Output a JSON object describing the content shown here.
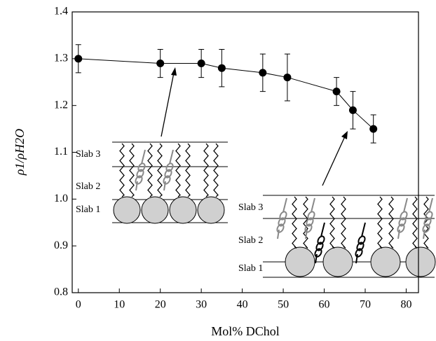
{
  "chart_data": {
    "type": "scatter",
    "x_label": "Mol% DChol",
    "y_label": "ρ1/ρH2O",
    "x": [
      0,
      20,
      30,
      35,
      45,
      51,
      63,
      67,
      72
    ],
    "values": [
      1.3,
      1.29,
      1.29,
      1.28,
      1.27,
      1.26,
      1.23,
      1.19,
      1.15
    ],
    "errors": [
      0.03,
      0.03,
      0.03,
      0.04,
      0.04,
      0.05,
      0.03,
      0.04,
      0.03
    ],
    "color": "#000000",
    "xlim": [
      -1.5,
      83
    ],
    "xticks": [
      0,
      10,
      20,
      30,
      40,
      50,
      60,
      70,
      80
    ],
    "ylim": [
      0.8,
      1.4
    ],
    "yticks": [
      {
        "value": 0.8,
        "label": "0.8"
      },
      {
        "value": 0.9,
        "label": "0.9"
      },
      {
        "value": 1.0,
        "label": "1.0"
      },
      {
        "value": 1.1,
        "label": "1.1"
      },
      {
        "value": 1.2,
        "label": "1.2"
      },
      {
        "value": 1.3,
        "label": "1.3"
      },
      {
        "value": 1.4,
        "label": "1.4"
      }
    ],
    "annotations": {
      "left_inset": [
        "Slab 3",
        "Slab 2",
        "Slab 1"
      ],
      "right_inset": [
        "Slab 3",
        "Slab 2",
        "Slab 1"
      ]
    }
  }
}
